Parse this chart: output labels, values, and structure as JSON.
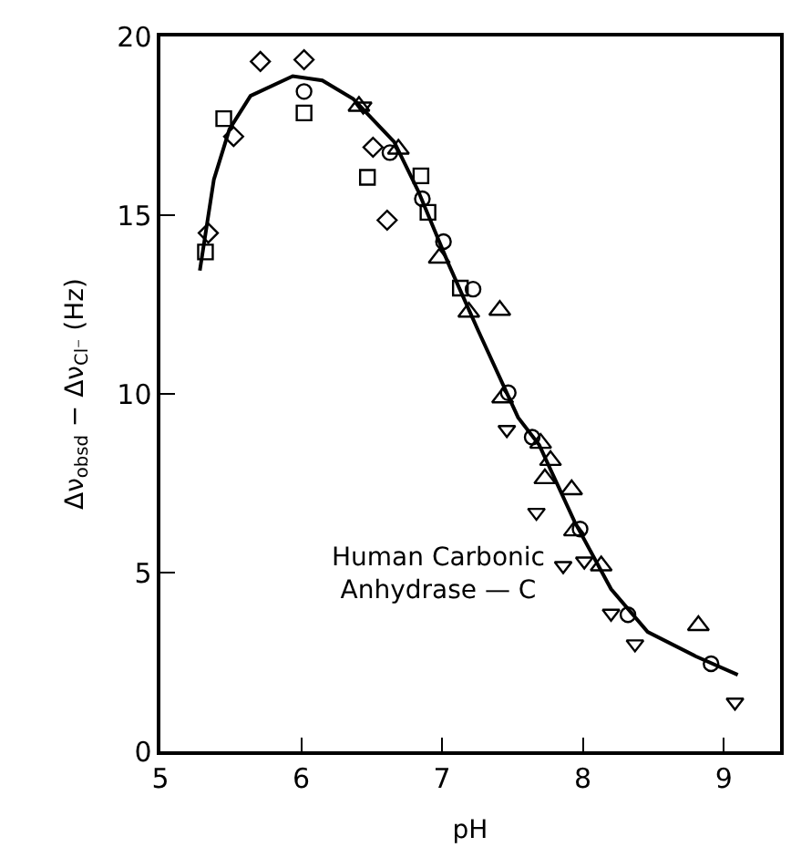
{
  "chart_data": {
    "type": "scatter",
    "xlabel": "pH",
    "ylabel": "Δν$_{obsd}$ − Δν$_{Cl⁻}$ (Hz)",
    "xlim": [
      5,
      9.4
    ],
    "xticks": [
      5,
      6,
      7,
      8,
      9
    ],
    "ylim": [
      0,
      20
    ],
    "yticks": [
      0,
      5,
      10,
      15,
      20
    ],
    "annotations": [
      "Human Carbonic\nAnhydrase — C"
    ],
    "series": [
      {
        "color": "#000000",
        "marker": "square",
        "x": [
          5.32,
          5.45,
          6.02,
          6.47,
          6.85,
          6.9,
          7.13
        ],
        "values": [
          13.97,
          17.7,
          17.86,
          16.06,
          16.1,
          15.08,
          12.96
        ]
      },
      {
        "color": "#000000",
        "marker": "diamond",
        "x": [
          5.34,
          5.52,
          5.71,
          6.02,
          6.51,
          6.61
        ],
        "values": [
          14.5,
          17.2,
          19.3,
          19.35,
          16.9,
          14.86
        ]
      },
      {
        "color": "#000000",
        "marker": "triangle",
        "x": [
          6.41,
          6.69,
          6.98,
          7.19,
          7.41,
          7.43,
          7.7,
          7.77,
          7.73,
          7.92,
          7.94,
          8.13,
          8.82
        ],
        "values": [
          18.05,
          16.85,
          13.8,
          12.29,
          12.34,
          9.89,
          8.62,
          8.14,
          7.63,
          7.32,
          6.17,
          5.19,
          3.52
        ]
      },
      {
        "color": "#000000",
        "marker": "triangle-down",
        "x": [
          6.44,
          7.46,
          7.67,
          7.86,
          8.01,
          8.2,
          8.37,
          9.08
        ],
        "values": [
          18.05,
          9.0,
          6.68,
          5.19,
          5.32,
          3.86,
          3.0,
          1.37
        ]
      },
      {
        "color": "#000000",
        "marker": "circle",
        "x": [
          6.02,
          6.63,
          6.86,
          7.01,
          7.22,
          7.47,
          7.64,
          7.98,
          8.32,
          8.91
        ],
        "values": [
          18.46,
          16.75,
          15.46,
          14.26,
          12.93,
          10.03,
          8.79,
          6.22,
          3.82,
          2.45
        ]
      },
      {
        "type": "line",
        "color": "#000000",
        "marker": "none",
        "line_style": "solid",
        "x": [
          5.28,
          5.38,
          5.49,
          5.64,
          5.94,
          6.15,
          6.37,
          6.66,
          6.83,
          7.05,
          7.26,
          7.54,
          7.69,
          7.94,
          8.2,
          8.46,
          8.8,
          9.1
        ],
        "values": [
          13.45,
          16.0,
          17.4,
          18.34,
          18.89,
          18.77,
          18.25,
          17.05,
          15.68,
          13.6,
          11.74,
          9.34,
          8.57,
          6.43,
          4.54,
          3.34,
          2.66,
          2.14
        ]
      }
    ]
  }
}
